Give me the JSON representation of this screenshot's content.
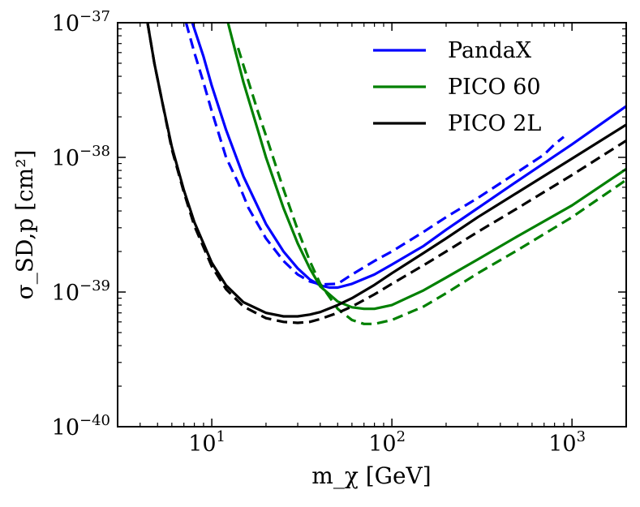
{
  "chart_data": {
    "type": "line",
    "title": "",
    "xlabel": "m_χ [GeV]",
    "ylabel": "σ_SD,p [cm²]",
    "xscale": "log",
    "yscale": "log",
    "xlim": [
      3,
      2000
    ],
    "ylim": [
      1e-40,
      1e-37
    ],
    "xticks": [
      {
        "value": 10,
        "base": "10",
        "exp": "1"
      },
      {
        "value": 100,
        "base": "10",
        "exp": "2"
      },
      {
        "value": 1000,
        "base": "10",
        "exp": "3"
      }
    ],
    "yticks": [
      {
        "value": 1e-40,
        "base": "10",
        "exp": "−40"
      },
      {
        "value": 1e-39,
        "base": "10",
        "exp": "−39"
      },
      {
        "value": 1e-38,
        "base": "10",
        "exp": "−38"
      },
      {
        "value": 1e-37,
        "base": "10",
        "exp": "−37"
      }
    ],
    "legend_position": "top-right",
    "colors": {
      "PandaX": "#0000ff",
      "PICO 60": "#008000",
      "PICO 2L": "#000000"
    },
    "series": [
      {
        "name": "PandaX",
        "style": "solid",
        "in_legend": true,
        "x": [
          7.8,
          9,
          10,
          12,
          15,
          20,
          25,
          30,
          35,
          40,
          45,
          50,
          60,
          80,
          100,
          150,
          200,
          300,
          500,
          1000,
          2000
        ],
        "y": [
          1e-37,
          5.6e-38,
          3.4e-38,
          1.6e-38,
          7.2e-39,
          3.2e-39,
          2e-39,
          1.5e-39,
          1.24e-39,
          1.12e-39,
          1.08e-39,
          1.08e-39,
          1.15e-39,
          1.35e-39,
          1.6e-39,
          2.2e-39,
          2.9e-39,
          4.2e-39,
          6.7e-39,
          1.25e-38,
          2.4e-38
        ]
      },
      {
        "name": "PandaX (dashed)",
        "style": "dashed",
        "in_legend": false,
        "x": [
          7.2,
          8,
          9,
          10,
          12,
          14,
          16,
          20,
          25,
          30,
          35,
          40,
          50,
          60,
          80,
          100,
          150,
          200,
          300,
          500,
          700,
          800,
          900
        ],
        "y": [
          1e-37,
          6e-38,
          3.6e-38,
          2.2e-38,
          1e-38,
          6.5e-39,
          4.2e-39,
          2.5e-39,
          1.7e-39,
          1.35e-39,
          1.2e-39,
          1.14e-39,
          1.15e-39,
          1.35e-39,
          1.7e-39,
          2e-39,
          2.8e-39,
          3.6e-39,
          5e-39,
          7.8e-39,
          1.05e-38,
          1.25e-38,
          1.42e-38
        ]
      },
      {
        "name": "PICO 60",
        "style": "solid",
        "in_legend": true,
        "x": [
          12.3,
          13,
          15,
          18,
          20,
          25,
          30,
          35,
          40,
          50,
          60,
          70,
          80,
          100,
          150,
          200,
          300,
          500,
          1000,
          2000
        ],
        "y": [
          1e-37,
          7.5e-38,
          3.6e-38,
          1.6e-38,
          1e-38,
          4.2e-39,
          2.3e-39,
          1.5e-39,
          1.1e-39,
          8.5e-40,
          7.7e-40,
          7.5e-40,
          7.5e-40,
          8e-40,
          1.03e-39,
          1.28e-39,
          1.75e-39,
          2.6e-39,
          4.4e-39,
          8.2e-39
        ]
      },
      {
        "name": "PICO 60 (dashed)",
        "style": "dashed",
        "in_legend": false,
        "x": [
          14,
          15,
          18,
          20,
          25,
          30,
          35,
          40,
          50,
          60,
          70,
          80,
          100,
          150,
          200,
          300,
          500,
          1000,
          2000
        ],
        "y": [
          6.5e-38,
          4.8e-38,
          2.2e-38,
          1.45e-38,
          5.8e-39,
          2.9e-39,
          1.7e-39,
          1.15e-39,
          7.5e-40,
          6.2e-40,
          5.8e-40,
          5.8e-40,
          6.2e-40,
          7.8e-40,
          9.8e-40,
          1.38e-39,
          2.05e-39,
          3.6e-39,
          6.8e-39
        ]
      },
      {
        "name": "PICO 2L",
        "style": "solid",
        "in_legend": true,
        "x": [
          4.4,
          4.8,
          5.3,
          6,
          7,
          8,
          10,
          12,
          15,
          20,
          25,
          30,
          35,
          40,
          50,
          60,
          80,
          100,
          150,
          200,
          300,
          500,
          1000,
          2000
        ],
        "y": [
          1e-37,
          5e-38,
          2.6e-38,
          1.2e-38,
          5.7e-39,
          3.3e-39,
          1.65e-39,
          1.12e-39,
          8.4e-40,
          7e-40,
          6.6e-40,
          6.6e-40,
          6.8e-40,
          7.1e-40,
          8e-40,
          9e-40,
          1.13e-39,
          1.38e-39,
          1.95e-39,
          2.5e-39,
          3.6e-39,
          5.5e-39,
          9.8e-39,
          1.75e-38
        ]
      },
      {
        "name": "PICO 2L (dashed)",
        "style": "dashed",
        "in_legend": false,
        "x": [
          4.4,
          4.8,
          5.3,
          6,
          7,
          8,
          10,
          12,
          15,
          20,
          25,
          30,
          35,
          40,
          50,
          60,
          80,
          100,
          150,
          200,
          300,
          500,
          1000,
          2000
        ],
        "y": [
          1e-37,
          5e-38,
          2.6e-38,
          1.15e-38,
          5.5e-39,
          3.1e-39,
          1.55e-39,
          1.05e-39,
          7.8e-40,
          6.4e-40,
          6e-40,
          5.9e-40,
          6e-40,
          6.3e-40,
          7e-40,
          7.8e-40,
          9.6e-40,
          1.15e-39,
          1.58e-39,
          2e-39,
          2.8e-39,
          4.2e-39,
          7.4e-39,
          1.33e-38
        ]
      }
    ]
  }
}
